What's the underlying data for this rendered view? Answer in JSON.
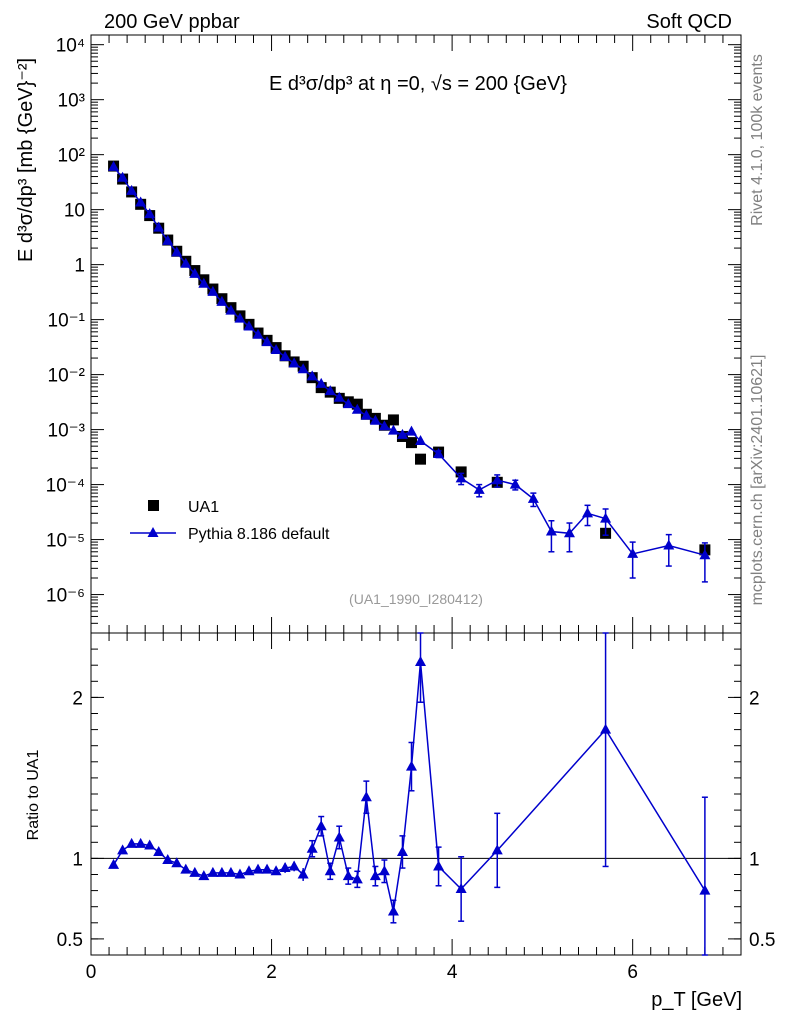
{
  "header": {
    "left": "200 GeV ppbar",
    "right": "Soft QCD"
  },
  "side_labels": {
    "rivet": "Rivet 4.1.0,  100k events",
    "source": "mcplots.cern.ch [arXiv:2401.10621]"
  },
  "chart_data": [
    {
      "type": "scatter",
      "panel": "main",
      "title": "E d³σ/dp³ at η =0, √s = 200 {GeV}",
      "ylabel": "E d³σ/dp³ [mb {GeV}⁻²]",
      "yscale": "log",
      "xlim": [
        0,
        7.2
      ],
      "ylim": [
        2e-07,
        15000
      ],
      "yticks": [
        1e-06,
        1e-05,
        0.0001,
        0.001,
        0.01,
        0.1,
        1,
        10,
        100,
        1000,
        10000
      ],
      "ytick_labels": [
        "10⁻⁶",
        "10⁻⁵",
        "10⁻⁴",
        "10⁻³",
        "10⁻²",
        "10⁻¹",
        "1",
        "10",
        "10²",
        "10³",
        "10⁴"
      ],
      "annotation": "(UA1_1990_I280412)",
      "legend": {
        "position": "bottom-left",
        "entries": [
          "UA1",
          "Pythia 8.186 default"
        ]
      },
      "series": [
        {
          "name": "UA1",
          "marker": "square",
          "color": "#000000",
          "x": [
            0.25,
            0.35,
            0.45,
            0.55,
            0.65,
            0.75,
            0.85,
            0.95,
            1.05,
            1.15,
            1.25,
            1.35,
            1.45,
            1.55,
            1.65,
            1.75,
            1.85,
            1.95,
            2.05,
            2.15,
            2.25,
            2.35,
            2.45,
            2.55,
            2.65,
            2.75,
            2.85,
            2.95,
            3.05,
            3.15,
            3.25,
            3.35,
            3.45,
            3.55,
            3.65,
            3.85,
            4.1,
            4.5,
            5.7,
            6.8
          ],
          "y": [
            62,
            36,
            21,
            12.5,
            7.8,
            4.6,
            2.8,
            1.75,
            1.15,
            0.78,
            0.53,
            0.36,
            0.24,
            0.165,
            0.117,
            0.082,
            0.057,
            0.042,
            0.031,
            0.022,
            0.017,
            0.0142,
            0.0088,
            0.0058,
            0.0048,
            0.0037,
            0.0032,
            0.0029,
            0.0019,
            0.0016,
            0.0012,
            0.0015,
            0.00075,
            0.00058,
            0.00029,
            0.00039,
            0.00017,
            0.00011,
            1.3e-05,
            6.5e-06
          ]
        },
        {
          "name": "Pythia 8.186 default",
          "marker": "triangle",
          "color": "#0000cc",
          "x": [
            0.25,
            0.35,
            0.45,
            0.55,
            0.65,
            0.75,
            0.85,
            0.95,
            1.05,
            1.15,
            1.25,
            1.35,
            1.45,
            1.55,
            1.65,
            1.75,
            1.85,
            1.95,
            2.05,
            2.15,
            2.25,
            2.35,
            2.45,
            2.55,
            2.65,
            2.75,
            2.85,
            2.95,
            3.05,
            3.15,
            3.25,
            3.35,
            3.45,
            3.55,
            3.65,
            3.85,
            4.1,
            4.3,
            4.5,
            4.7,
            4.9,
            5.1,
            5.3,
            5.5,
            5.7,
            6.0,
            6.4,
            6.8
          ],
          "y": [
            60,
            38,
            22,
            13.5,
            8.3,
            4.7,
            2.7,
            1.67,
            1.04,
            0.68,
            0.45,
            0.32,
            0.21,
            0.146,
            0.104,
            0.075,
            0.053,
            0.039,
            0.028,
            0.021,
            0.016,
            0.0125,
            0.0093,
            0.0068,
            0.005,
            0.0038,
            0.0029,
            0.0023,
            0.0018,
            0.00145,
            0.00115,
            0.00096,
            0.0008,
            0.00092,
            0.00062,
            0.00036,
            0.00013,
            8e-05,
            0.00012,
            0.0001,
            5.5e-05,
            1.4e-05,
            1.3e-05,
            3e-05,
            2.4e-05,
            5.5e-06,
            7.8e-06,
            5.2e-06
          ],
          "yerr": [
            0,
            0,
            0,
            0,
            0,
            0,
            0,
            0,
            0,
            0,
            0,
            0,
            0,
            0,
            0,
            0,
            0,
            0,
            0,
            0,
            0,
            0,
            0,
            0,
            0,
            0,
            0,
            0,
            0,
            0,
            0,
            0,
            0,
            0,
            0,
            5e-05,
            3e-05,
            2e-05,
            3e-05,
            2e-05,
            1.5e-05,
            8e-06,
            7e-06,
            1.2e-05,
            1.2e-05,
            3.5e-06,
            4.5e-06,
            3.5e-06
          ]
        }
      ]
    },
    {
      "type": "line",
      "panel": "ratio",
      "ylabel": "Ratio to UA1",
      "xlabel": "p_T [GeV]",
      "xlim": [
        0,
        7.2
      ],
      "ylim": [
        0.4,
        2.4
      ],
      "xticks": [
        0,
        2,
        4,
        6
      ],
      "xtick_labels": [
        "0",
        "2",
        "4",
        "6"
      ],
      "yticks": [
        0.5,
        1,
        2
      ],
      "ytick_labels": [
        "0.5",
        "1",
        "2"
      ],
      "reference_line": 1,
      "series": [
        {
          "name": "Pythia 8.186 default / UA1",
          "color": "#0000cc",
          "x": [
            0.25,
            0.35,
            0.45,
            0.55,
            0.65,
            0.75,
            0.85,
            0.95,
            1.05,
            1.15,
            1.25,
            1.35,
            1.45,
            1.55,
            1.65,
            1.75,
            1.85,
            1.95,
            2.05,
            2.15,
            2.25,
            2.35,
            2.45,
            2.55,
            2.65,
            2.75,
            2.85,
            2.95,
            3.05,
            3.15,
            3.25,
            3.35,
            3.45,
            3.55,
            3.65,
            3.85,
            4.1,
            4.5,
            5.7,
            6.8
          ],
          "y": [
            0.96,
            1.05,
            1.09,
            1.09,
            1.08,
            1.04,
            0.99,
            0.97,
            0.93,
            0.91,
            0.89,
            0.91,
            0.91,
            0.91,
            0.9,
            0.92,
            0.93,
            0.93,
            0.92,
            0.94,
            0.95,
            0.9,
            1.06,
            1.2,
            0.92,
            1.13,
            0.89,
            0.87,
            1.38,
            0.89,
            0.92,
            0.67,
            1.04,
            1.57,
            2.22,
            0.95,
            0.81,
            1.05,
            1.8,
            0.8
          ],
          "yerr": [
            0.01,
            0.01,
            0.01,
            0.01,
            0.01,
            0.01,
            0.01,
            0.01,
            0.01,
            0.01,
            0.01,
            0.01,
            0.01,
            0.01,
            0.01,
            0.01,
            0.02,
            0.02,
            0.02,
            0.03,
            0.03,
            0.04,
            0.05,
            0.06,
            0.05,
            0.07,
            0.05,
            0.05,
            0.1,
            0.06,
            0.07,
            0.07,
            0.1,
            0.15,
            0.25,
            0.12,
            0.2,
            0.23,
            0.85,
            0.58
          ]
        }
      ]
    }
  ]
}
